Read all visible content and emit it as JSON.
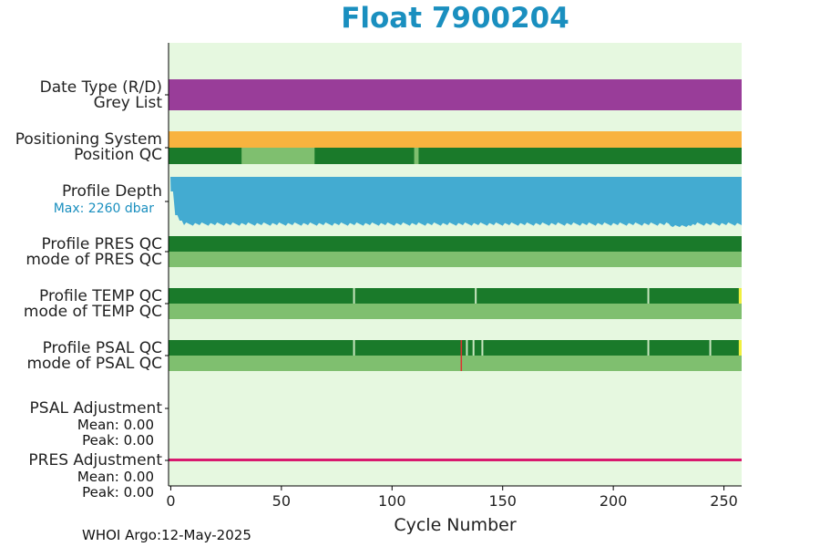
{
  "title": "Float 7900204",
  "footer": "WHOI Argo:12-May-2025",
  "colors": {
    "background": "#e6f8e0",
    "greylist": "#993d99",
    "positioning": "#f8b33f",
    "qc_good": "#1a7a2a",
    "qc_light": "#7fbf6f",
    "depth": "#43abd1",
    "pres_adjust": "#d8196e",
    "qc_flag_yellow": "#f0f040",
    "qc_flag_red": "#e03030",
    "title": "#1a8fbf"
  },
  "rows": {
    "date_type": "Date Type (R/D)",
    "grey_list": "Grey List",
    "positioning_system": "Positioning System",
    "position_qc": "Position QC",
    "profile_depth": "Profile Depth",
    "max_depth": "Max: 2260 dbar",
    "profile_pres_qc": "Profile PRES QC",
    "mode_pres_qc": "mode of PRES QC",
    "profile_temp_qc": "Profile TEMP QC",
    "mode_temp_qc": "mode of TEMP QC",
    "profile_psal_qc": "Profile PSAL QC",
    "mode_psal_qc": "mode of PSAL QC",
    "psal_adjustment": "PSAL Adjustment",
    "psal_mean": "Mean: 0.00",
    "psal_peak": "Peak: 0.00",
    "pres_adjustment": "PRES Adjustment",
    "pres_mean": "Mean: 0.00",
    "pres_peak": "Peak: 0.00"
  },
  "chart_data": {
    "type": "bar",
    "title": "Float 7900204",
    "xlabel": "Cycle Number",
    "xlim": [
      -1,
      258
    ],
    "xticks": [
      0,
      50,
      100,
      150,
      200,
      250
    ],
    "max_depth_dbar": 2260,
    "position_qc_light_ranges": [
      [
        32,
        65
      ],
      [
        110,
        112
      ]
    ],
    "temp_qc_gaps": [
      82,
      137,
      215
    ],
    "temp_qc_flag_cycle": 257,
    "psal_qc_gaps": [
      82,
      133,
      136,
      140,
      215,
      243
    ],
    "psal_qc_flag_cycle": 257,
    "psal_qc_red_cycle": 131,
    "pres_adjustment_mean": 0.0,
    "pres_adjustment_peak": 0.0,
    "psal_adjustment_mean": 0.0,
    "psal_adjustment_peak": 0.0
  }
}
